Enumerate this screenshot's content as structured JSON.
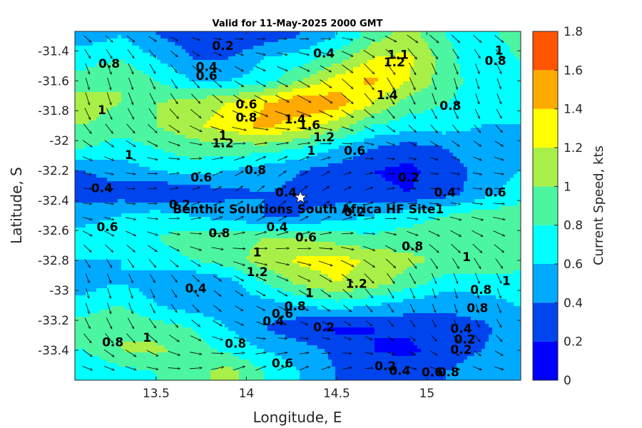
{
  "chart_data": {
    "type": "heatmap",
    "title": "Valid for 11-May-2025 2000 GMT",
    "xlabel": "Longitude, E",
    "ylabel": "Latitude, S",
    "xlim": [
      13.05,
      15.52
    ],
    "ylim": [
      -33.6,
      -31.27
    ],
    "x_ticks": [
      "13.5",
      "14",
      "14.5",
      "15"
    ],
    "x_tick_values": [
      13.5,
      14.0,
      14.5,
      15.0
    ],
    "y_ticks": [
      "-31.4",
      "-31.6",
      "-31.8",
      "-32",
      "-32.2",
      "-32.4",
      "-32.6",
      "-32.8",
      "-33",
      "-33.2",
      "-33.4"
    ],
    "y_tick_values": [
      -31.4,
      -31.6,
      -31.8,
      -32.0,
      -32.2,
      -32.4,
      -32.6,
      -32.8,
      -33.0,
      -33.2,
      -33.4
    ],
    "colorbar": {
      "label": "Current Speed, kts",
      "levels": [
        0,
        0.2,
        0.4,
        0.6,
        0.8,
        1.0,
        1.2,
        1.4,
        1.6,
        1.8
      ],
      "tick_labels": [
        "0",
        "0.2",
        "0.4",
        "0.6",
        "0.8",
        "1",
        "1.2",
        "1.4",
        "1.6",
        "1.8"
      ],
      "colors": [
        "#0000ff",
        "#0044ee",
        "#00aaff",
        "#00ffff",
        "#4cf5a0",
        "#a8f048",
        "#ffff00",
        "#ffaa00",
        "#ff5500"
      ]
    },
    "speed_field": {
      "description": "Gridded current speed (kts), rows from north (-31.3) to south (-33.55), columns west (13.1) to east (15.5)",
      "lon": [
        13.1,
        13.3,
        13.5,
        13.7,
        13.9,
        14.1,
        14.3,
        14.5,
        14.7,
        14.9,
        15.1,
        15.3,
        15.5
      ],
      "lat": [
        -31.3,
        -31.45,
        -31.6,
        -31.75,
        -31.9,
        -32.05,
        -32.2,
        -32.35,
        -32.5,
        -32.65,
        -32.8,
        -32.95,
        -33.1,
        -33.25,
        -33.4,
        -33.55
      ],
      "values": [
        [
          0.5,
          0.6,
          0.4,
          0.3,
          0.2,
          0.3,
          0.4,
          0.6,
          0.9,
          1.1,
          0.8,
          0.7,
          0.9
        ],
        [
          0.7,
          0.8,
          0.6,
          0.4,
          0.4,
          0.6,
          0.7,
          0.9,
          1.2,
          1.25,
          0.9,
          0.6,
          0.8
        ],
        [
          0.9,
          1.0,
          0.8,
          0.6,
          0.6,
          0.7,
          1.0,
          1.3,
          1.45,
          1.2,
          0.9,
          0.7,
          0.8
        ],
        [
          1.1,
          1.0,
          1.0,
          1.1,
          1.2,
          1.4,
          1.6,
          1.5,
          1.2,
          0.9,
          0.8,
          0.7,
          0.7
        ],
        [
          1.0,
          0.9,
          1.0,
          1.15,
          1.3,
          1.45,
          1.3,
          1.1,
          0.8,
          0.7,
          0.7,
          0.6,
          0.6
        ],
        [
          0.8,
          0.7,
          0.8,
          0.9,
          0.9,
          0.9,
          0.8,
          0.6,
          0.4,
          0.3,
          0.4,
          0.5,
          0.6
        ],
        [
          0.4,
          0.5,
          0.6,
          0.7,
          0.6,
          0.5,
          0.4,
          0.3,
          0.2,
          0.15,
          0.3,
          0.45,
          0.6
        ],
        [
          0.3,
          0.3,
          0.2,
          0.25,
          0.35,
          0.4,
          0.35,
          0.3,
          0.25,
          0.2,
          0.3,
          0.5,
          0.7
        ],
        [
          0.5,
          0.6,
          0.7,
          0.6,
          0.5,
          0.4,
          0.4,
          0.5,
          0.6,
          0.7,
          0.8,
          0.9,
          0.9
        ],
        [
          0.7,
          0.8,
          0.8,
          0.9,
          0.9,
          1.0,
          1.0,
          0.9,
          0.85,
          0.9,
          0.95,
          1.0,
          1.0
        ],
        [
          0.6,
          0.6,
          0.7,
          0.8,
          0.9,
          1.1,
          1.25,
          1.3,
          1.15,
          1.05,
          0.95,
          1.0,
          0.9
        ],
        [
          0.5,
          0.6,
          0.5,
          0.4,
          0.5,
          0.8,
          1.05,
          1.2,
          1.1,
          0.9,
          0.7,
          0.7,
          0.7
        ],
        [
          0.7,
          0.8,
          0.6,
          0.5,
          0.5,
          0.5,
          0.6,
          0.7,
          0.6,
          0.5,
          0.45,
          0.5,
          0.6
        ],
        [
          0.9,
          1.0,
          0.9,
          0.8,
          0.6,
          0.4,
          0.25,
          0.15,
          0.2,
          0.25,
          0.3,
          0.35,
          0.5
        ],
        [
          0.8,
          1.0,
          1.05,
          0.9,
          0.75,
          0.6,
          0.5,
          0.35,
          0.2,
          0.15,
          0.3,
          0.4,
          0.5
        ],
        [
          0.6,
          0.7,
          0.8,
          0.9,
          1.1,
          0.8,
          0.6,
          0.4,
          0.3,
          0.35,
          0.4,
          0.5,
          0.5
        ]
      ]
    },
    "contour_labels": [
      {
        "text": "0.2",
        "lon": 13.87,
        "lat": -31.37
      },
      {
        "text": "0.4",
        "lon": 14.43,
        "lat": -31.42
      },
      {
        "text": "0.8",
        "lon": 13.24,
        "lat": -31.49
      },
      {
        "text": "0.4",
        "lon": 13.78,
        "lat": -31.51
      },
      {
        "text": "0.6",
        "lon": 13.78,
        "lat": -31.57
      },
      {
        "text": "1.1",
        "lon": 14.84,
        "lat": -31.43
      },
      {
        "text": "1.2",
        "lon": 14.82,
        "lat": -31.48
      },
      {
        "text": "1",
        "lon": 15.4,
        "lat": -31.4
      },
      {
        "text": "0.8",
        "lon": 15.38,
        "lat": -31.47
      },
      {
        "text": "1.4",
        "lon": 14.78,
        "lat": -31.7
      },
      {
        "text": "0.6",
        "lon": 14.0,
        "lat": -31.76
      },
      {
        "text": "0.8",
        "lon": 14.0,
        "lat": -31.85
      },
      {
        "text": "0.8",
        "lon": 15.13,
        "lat": -31.77
      },
      {
        "text": "1",
        "lon": 13.2,
        "lat": -31.8
      },
      {
        "text": "1.4",
        "lon": 14.27,
        "lat": -31.86
      },
      {
        "text": "1.6",
        "lon": 14.35,
        "lat": -31.9
      },
      {
        "text": "1",
        "lon": 13.87,
        "lat": -31.97
      },
      {
        "text": "1.2",
        "lon": 13.87,
        "lat": -32.02
      },
      {
        "text": "1.2",
        "lon": 14.43,
        "lat": -31.98
      },
      {
        "text": "1",
        "lon": 14.36,
        "lat": -32.07
      },
      {
        "text": "1",
        "lon": 13.35,
        "lat": -32.1
      },
      {
        "text": "0.6",
        "lon": 14.6,
        "lat": -32.07
      },
      {
        "text": "0.8",
        "lon": 14.05,
        "lat": -32.2
      },
      {
        "text": "0.6",
        "lon": 13.75,
        "lat": -32.25
      },
      {
        "text": "0.2",
        "lon": 14.9,
        "lat": -32.25
      },
      {
        "text": "0.4",
        "lon": 13.2,
        "lat": -32.32
      },
      {
        "text": "0.4",
        "lon": 14.22,
        "lat": -32.35
      },
      {
        "text": "0.4",
        "lon": 15.1,
        "lat": -32.35
      },
      {
        "text": "0.6",
        "lon": 15.38,
        "lat": -32.35
      },
      {
        "text": "0.2",
        "lon": 13.63,
        "lat": -32.43
      },
      {
        "text": "0.2",
        "lon": 14.6,
        "lat": -32.48
      },
      {
        "text": "0.6",
        "lon": 13.23,
        "lat": -32.58
      },
      {
        "text": "0.4",
        "lon": 14.17,
        "lat": -32.58
      },
      {
        "text": "0.8",
        "lon": 13.85,
        "lat": -32.62
      },
      {
        "text": "0.6",
        "lon": 14.33,
        "lat": -32.65
      },
      {
        "text": "0.8",
        "lon": 14.92,
        "lat": -32.71
      },
      {
        "text": "1",
        "lon": 14.06,
        "lat": -32.75
      },
      {
        "text": "1",
        "lon": 15.22,
        "lat": -32.78
      },
      {
        "text": "1.2",
        "lon": 14.06,
        "lat": -32.88
      },
      {
        "text": "1.2",
        "lon": 14.61,
        "lat": -32.96
      },
      {
        "text": "0.4",
        "lon": 13.72,
        "lat": -32.99
      },
      {
        "text": "1",
        "lon": 15.44,
        "lat": -32.94
      },
      {
        "text": "0.8",
        "lon": 15.3,
        "lat": -33.0
      },
      {
        "text": "1",
        "lon": 14.35,
        "lat": -33.02
      },
      {
        "text": "0.8",
        "lon": 14.27,
        "lat": -33.11
      },
      {
        "text": "0.6",
        "lon": 14.2,
        "lat": -33.16
      },
      {
        "text": "0.4",
        "lon": 14.15,
        "lat": -33.21
      },
      {
        "text": "0.2",
        "lon": 14.43,
        "lat": -33.25
      },
      {
        "text": "0.8",
        "lon": 15.28,
        "lat": -33.12
      },
      {
        "text": "0.4",
        "lon": 15.19,
        "lat": -33.26
      },
      {
        "text": "0.2",
        "lon": 15.21,
        "lat": -33.33
      },
      {
        "text": "1",
        "lon": 13.45,
        "lat": -33.32
      },
      {
        "text": "0.8",
        "lon": 13.26,
        "lat": -33.35
      },
      {
        "text": "0.8",
        "lon": 13.94,
        "lat": -33.36
      },
      {
        "text": "0.2",
        "lon": 15.19,
        "lat": -33.4
      },
      {
        "text": "0.6",
        "lon": 14.2,
        "lat": -33.49
      },
      {
        "text": "0.2",
        "lon": 14.77,
        "lat": -33.51
      },
      {
        "text": "0.4",
        "lon": 14.85,
        "lat": -33.54
      },
      {
        "text": "0.6",
        "lon": 15.03,
        "lat": -33.55
      },
      {
        "text": "0.8",
        "lon": 15.12,
        "lat": -33.55
      }
    ],
    "site": {
      "name": "Benthic Solutions South Africa HF Site1",
      "lon": 14.3,
      "lat": -32.38
    }
  }
}
